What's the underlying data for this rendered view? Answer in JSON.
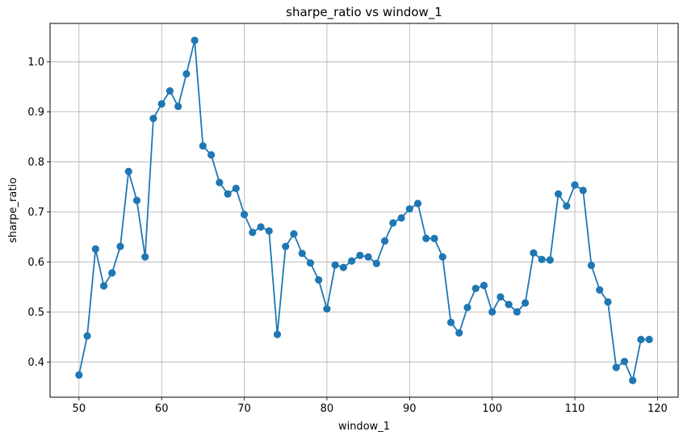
{
  "chart_data": {
    "type": "line",
    "title": "sharpe_ratio vs window_1",
    "xlabel": "window_1",
    "ylabel": "sharpe_ratio",
    "xlim": [
      46.5,
      122.5
    ],
    "ylim": [
      0.3295,
      1.077
    ],
    "xticks": [
      50,
      60,
      70,
      80,
      90,
      100,
      110,
      120
    ],
    "yticks": [
      0.4,
      0.5,
      0.6,
      0.7,
      0.8,
      0.9,
      1.0
    ],
    "grid": true,
    "marker": "circle",
    "color": "#1f77b4",
    "x": [
      50,
      51,
      52,
      53,
      54,
      55,
      56,
      57,
      58,
      59,
      60,
      61,
      62,
      63,
      64,
      65,
      66,
      67,
      68,
      69,
      70,
      71,
      72,
      73,
      74,
      75,
      76,
      77,
      78,
      79,
      80,
      81,
      82,
      83,
      84,
      85,
      86,
      87,
      88,
      89,
      90,
      91,
      92,
      93,
      94,
      95,
      96,
      97,
      98,
      99,
      100,
      101,
      102,
      103,
      104,
      105,
      106,
      107,
      108,
      109,
      110,
      111,
      112,
      113,
      114,
      115,
      116,
      117,
      118,
      119
    ],
    "y": [
      0.374,
      0.452,
      0.626,
      0.552,
      0.578,
      0.631,
      0.781,
      0.723,
      0.61,
      0.887,
      0.916,
      0.942,
      0.911,
      0.976,
      1.043,
      0.832,
      0.814,
      0.759,
      0.736,
      0.747,
      0.695,
      0.659,
      0.67,
      0.662,
      0.455,
      0.631,
      0.656,
      0.617,
      0.598,
      0.564,
      0.506,
      0.594,
      0.589,
      0.602,
      0.613,
      0.61,
      0.597,
      0.642,
      0.678,
      0.688,
      0.706,
      0.717,
      0.647,
      0.647,
      0.61,
      0.479,
      0.458,
      0.509,
      0.547,
      0.553,
      0.5,
      0.53,
      0.515,
      0.5,
      0.518,
      0.618,
      0.605,
      0.604,
      0.736,
      0.712,
      0.754,
      0.743,
      0.593,
      0.544,
      0.52,
      0.389,
      0.401,
      0.363,
      0.445,
      0.445
    ]
  }
}
